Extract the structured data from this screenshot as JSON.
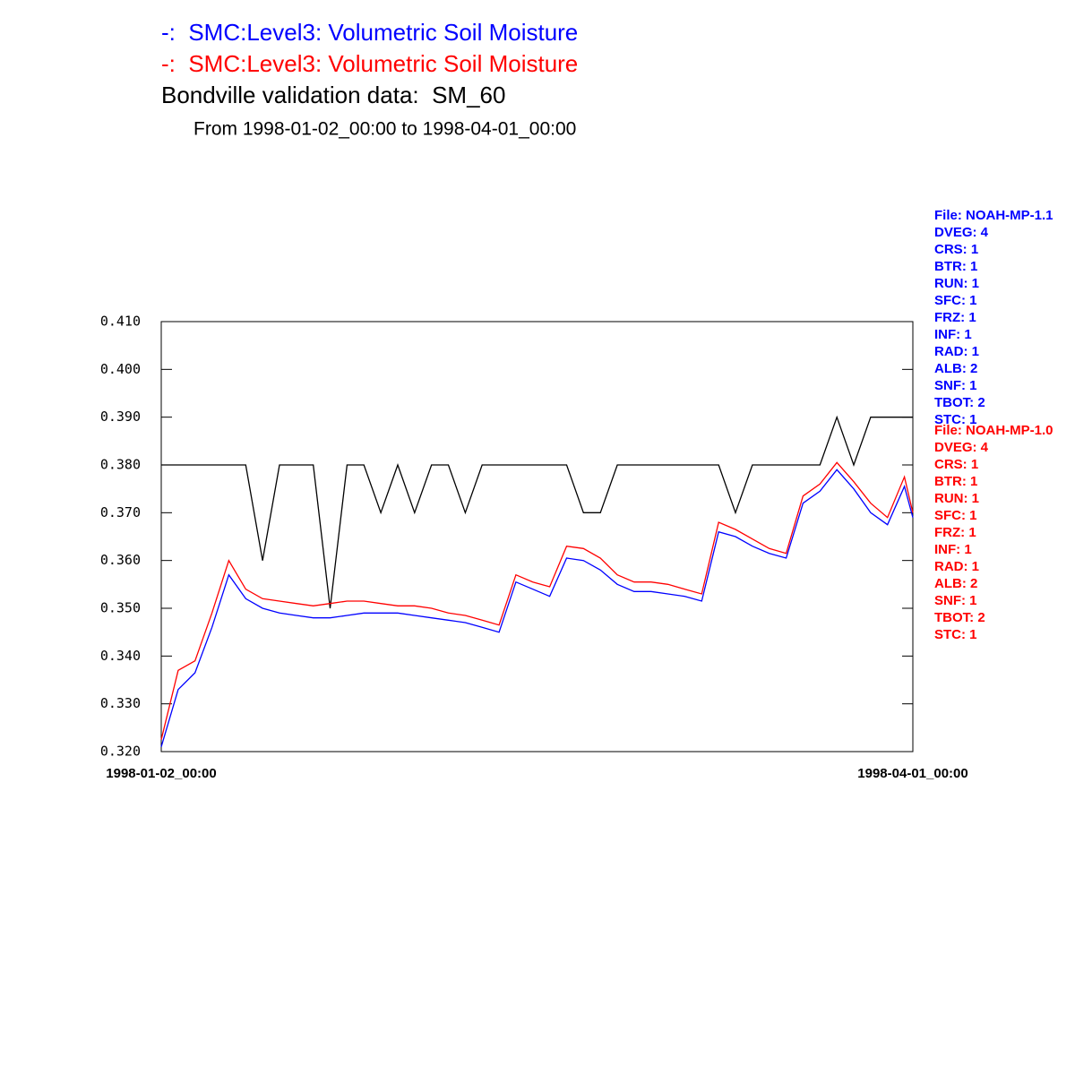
{
  "chart_data": {
    "type": "line",
    "subtitle": "From 1998-01-02_00:00 to 1998-04-01_00:00",
    "x": [
      "1998-01-02_00:00",
      "1998-01-04_00:00",
      "1998-01-06_00:00",
      "1998-01-08_00:00",
      "1998-01-10_00:00",
      "1998-01-12_00:00",
      "1998-01-14_00:00",
      "1998-01-16_00:00",
      "1998-01-18_00:00",
      "1998-01-20_00:00",
      "1998-01-22_00:00",
      "1998-01-24_00:00",
      "1998-01-26_00:00",
      "1998-01-28_00:00",
      "1998-01-30_00:00",
      "1998-02-01_00:00",
      "1998-02-03_00:00",
      "1998-02-05_00:00",
      "1998-02-07_00:00",
      "1998-02-09_00:00",
      "1998-02-11_00:00",
      "1998-02-13_00:00",
      "1998-02-15_00:00",
      "1998-02-17_00:00",
      "1998-02-19_00:00",
      "1998-02-21_00:00",
      "1998-02-23_00:00",
      "1998-02-25_00:00",
      "1998-02-27_00:00",
      "1998-03-01_00:00",
      "1998-03-03_00:00",
      "1998-03-05_00:00",
      "1998-03-07_00:00",
      "1998-03-09_00:00",
      "1998-03-11_00:00",
      "1998-03-13_00:00",
      "1998-03-15_00:00",
      "1998-03-17_00:00",
      "1998-03-19_00:00",
      "1998-03-21_00:00",
      "1998-03-23_00:00",
      "1998-03-25_00:00",
      "1998-03-27_00:00",
      "1998-03-29_00:00",
      "1998-03-31_00:00",
      "1998-04-01_00:00"
    ],
    "xlim": [
      "1998-01-02_00:00",
      "1998-04-01_00:00"
    ],
    "xticks": [
      "1998-01-02_00:00",
      "1998-04-01_00:00"
    ],
    "ylim": [
      0.32,
      0.41
    ],
    "yticks": [
      {
        "value": 0.32,
        "label": "0.320"
      },
      {
        "value": 0.33,
        "label": "0.330"
      },
      {
        "value": 0.34,
        "label": "0.340"
      },
      {
        "value": 0.35,
        "label": "0.350"
      },
      {
        "value": 0.36,
        "label": "0.360"
      },
      {
        "value": 0.37,
        "label": "0.370"
      },
      {
        "value": 0.38,
        "label": "0.380"
      },
      {
        "value": 0.39,
        "label": "0.390"
      },
      {
        "value": 0.4,
        "label": "0.400"
      },
      {
        "value": 0.41,
        "label": "0.410"
      }
    ],
    "series": [
      {
        "name": "-:  SMC:Level3: Volumetric Soil Moisture",
        "color": "#0000ff",
        "info": [
          "File: NOAH-MP-1.1",
          "DVEG: 4",
          "CRS: 1",
          "BTR: 1",
          "RUN: 1",
          "SFC: 1",
          "FRZ: 1",
          "INF: 1",
          "RAD: 1",
          "ALB: 2",
          "SNF: 1",
          "TBOT: 2",
          "STC: 1"
        ],
        "values": [
          0.321,
          0.333,
          0.3365,
          0.346,
          0.357,
          0.352,
          0.35,
          0.349,
          0.3485,
          0.348,
          0.348,
          0.3485,
          0.349,
          0.349,
          0.349,
          0.3485,
          0.348,
          0.3475,
          0.347,
          0.346,
          0.345,
          0.3555,
          0.354,
          0.3525,
          0.3605,
          0.36,
          0.358,
          0.355,
          0.3535,
          0.3535,
          0.353,
          0.3525,
          0.3515,
          0.366,
          0.365,
          0.363,
          0.3615,
          0.3605,
          0.372,
          0.3745,
          0.379,
          0.375,
          0.37,
          0.3675,
          0.3755,
          0.369
        ]
      },
      {
        "name": "-:  SMC:Level3: Volumetric Soil Moisture",
        "color": "#ff0000",
        "info": [
          "File: NOAH-MP-1.0",
          "DVEG: 4",
          "CRS: 1",
          "BTR: 1",
          "RUN: 1",
          "SFC: 1",
          "FRZ: 1",
          "INF: 1",
          "RAD: 1",
          "ALB: 2",
          "SNF: 1",
          "TBOT: 2",
          "STC: 1"
        ],
        "values": [
          0.3225,
          0.337,
          0.339,
          0.349,
          0.36,
          0.354,
          0.352,
          0.3515,
          0.351,
          0.3505,
          0.351,
          0.3515,
          0.3515,
          0.351,
          0.3505,
          0.3505,
          0.35,
          0.349,
          0.3485,
          0.3475,
          0.3465,
          0.357,
          0.3555,
          0.3545,
          0.363,
          0.3625,
          0.3605,
          0.357,
          0.3555,
          0.3555,
          0.355,
          0.354,
          0.353,
          0.368,
          0.3665,
          0.3645,
          0.3625,
          0.3615,
          0.3735,
          0.376,
          0.3805,
          0.3765,
          0.372,
          0.369,
          0.3775,
          0.37
        ]
      },
      {
        "name": "Bondville validation data:  SM_60",
        "color": "#000000",
        "values": [
          0.38,
          0.38,
          0.38,
          0.38,
          0.38,
          0.38,
          0.36,
          0.38,
          0.38,
          0.38,
          0.35,
          0.38,
          0.38,
          0.37,
          0.38,
          0.37,
          0.38,
          0.38,
          0.37,
          0.38,
          0.38,
          0.38,
          0.38,
          0.38,
          0.38,
          0.37,
          0.37,
          0.38,
          0.38,
          0.38,
          0.38,
          0.38,
          0.38,
          0.38,
          0.37,
          0.38,
          0.38,
          0.38,
          0.38,
          0.38,
          0.39,
          0.38,
          0.39,
          0.39,
          0.39,
          0.39
        ]
      }
    ]
  }
}
